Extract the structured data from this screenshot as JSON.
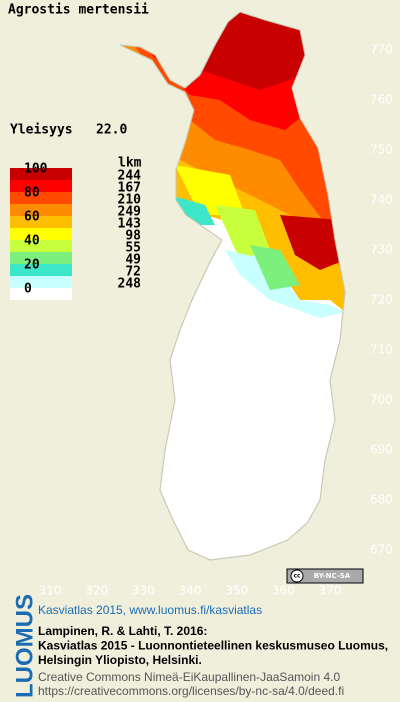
{
  "title": "Agrostis mertensii",
  "frequency": {
    "label": "Yleisyys",
    "value": "22.0"
  },
  "legend": {
    "colors": [
      "#c80000",
      "#ff0000",
      "#ff4a00",
      "#ff8c00",
      "#ffbe00",
      "#ffff00",
      "#c8ff3c",
      "#7cf07c",
      "#3ce6c8",
      "#c8ffff",
      "#ffffff"
    ],
    "scale_labels": [
      "100",
      "80",
      "60",
      "40",
      "20",
      "0"
    ],
    "count_header": "lkm",
    "counts": [
      "244",
      "167",
      "210",
      "249",
      "143",
      "98",
      "55",
      "49",
      "72",
      "248"
    ]
  },
  "x_ticks": [
    310,
    320,
    330,
    340,
    350,
    360,
    370
  ],
  "y_ticks": [
    770,
    760,
    750,
    740,
    730,
    720,
    710,
    700,
    690,
    680,
    670
  ],
  "license_badge": "BY-NC-SA",
  "footer": {
    "logo": "LUOMUS",
    "heading": "Kasviatlas 2015, www.luomus.fi/kasviatlas",
    "citation": [
      "Lampinen, R. & Lahti, T. 2016:",
      "Kasviatlas 2015 - Luonnontieteellinen keskusmuseo Luomus,",
      "Helsingin Yliopisto, Helsinki."
    ],
    "license": [
      "Creative Commons Nimeä-EiKaupallinen-JaaSamoin 4.0",
      "https://creativecommons.org/licenses/by-nc-sa/4.0/deed.fi"
    ]
  }
}
